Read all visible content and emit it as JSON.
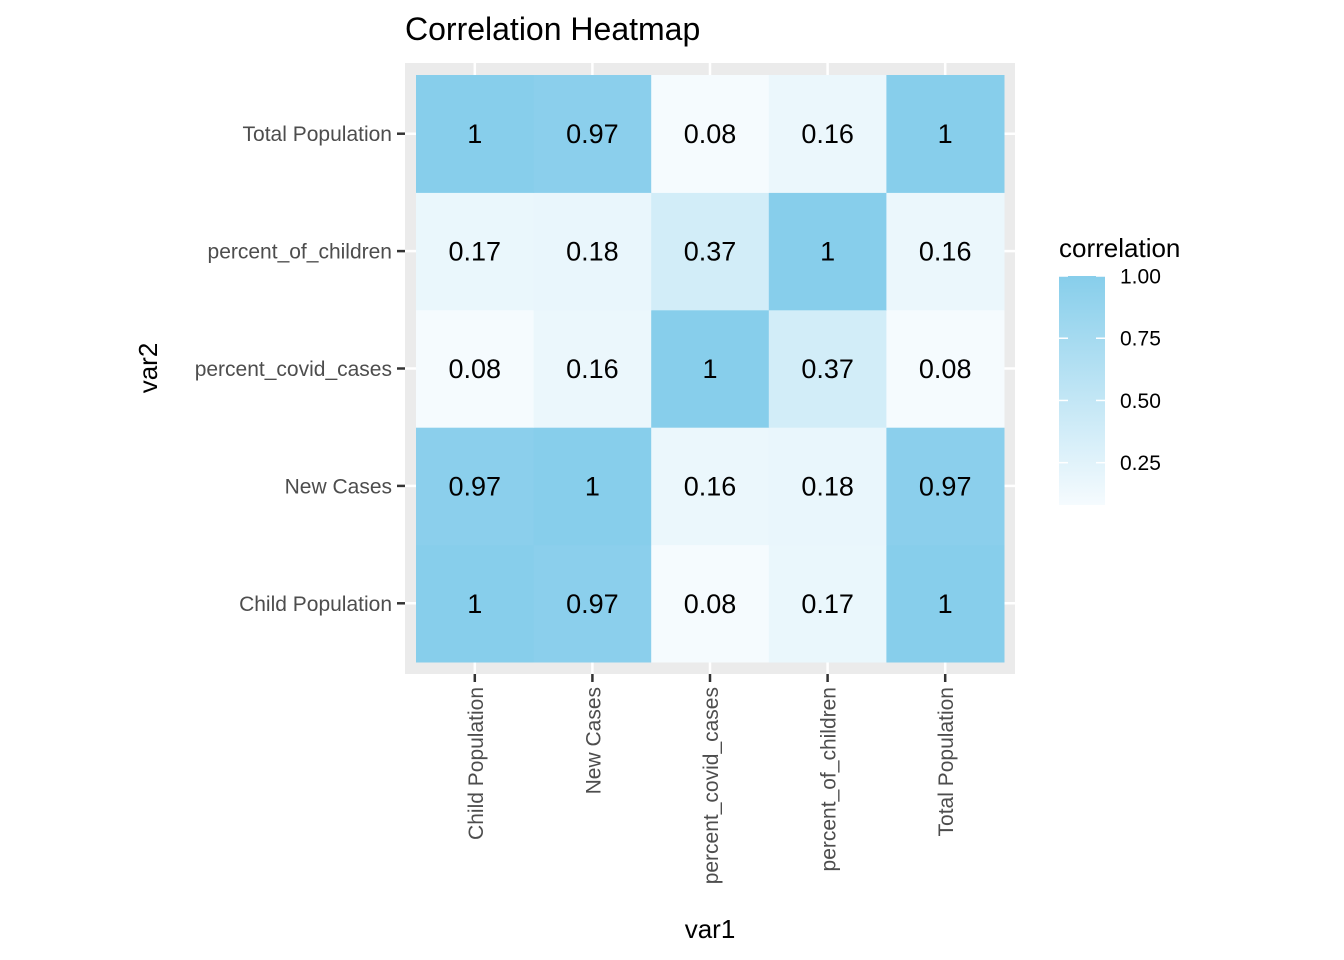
{
  "chart_data": {
    "type": "heatmap",
    "title": "Correlation Heatmap",
    "xlabel": "var1",
    "ylabel": "var2",
    "x_categories": [
      "Child Population",
      "New Cases",
      "percent_covid_cases",
      "percent_of_children",
      "Total Population"
    ],
    "y_categories": [
      "Child Population",
      "New Cases",
      "percent_covid_cases",
      "percent_of_children",
      "Total Population"
    ],
    "values": [
      [
        1,
        0.97,
        0.08,
        0.17,
        1
      ],
      [
        0.97,
        1,
        0.16,
        0.18,
        0.97
      ],
      [
        0.08,
        0.16,
        1,
        0.37,
        0.08
      ],
      [
        0.17,
        0.18,
        0.37,
        1,
        0.16
      ],
      [
        1,
        0.97,
        0.08,
        0.16,
        1
      ]
    ],
    "value_labels": [
      [
        "1",
        "0.97",
        "0.08",
        "0.17",
        "1"
      ],
      [
        "0.97",
        "1",
        "0.16",
        "0.18",
        "0.97"
      ],
      [
        "0.08",
        "0.16",
        "1",
        "0.37",
        "0.08"
      ],
      [
        "0.17",
        "0.18",
        "0.37",
        "1",
        "0.16"
      ],
      [
        "1",
        "0.97",
        "0.08",
        "0.16",
        "1"
      ]
    ],
    "legend": {
      "title": "correlation",
      "placement": "right",
      "ticks": [
        1.0,
        0.75,
        0.5,
        0.25
      ],
      "tick_labels": [
        "1.00",
        "0.75",
        "0.50",
        "0.25"
      ],
      "range": [
        0.08,
        1.0
      ]
    },
    "colors": {
      "low": "#f5fbfe",
      "high": "#87ceeb",
      "panel_background": "#ebebeb",
      "grid": "#ffffff"
    },
    "grid": true
  }
}
